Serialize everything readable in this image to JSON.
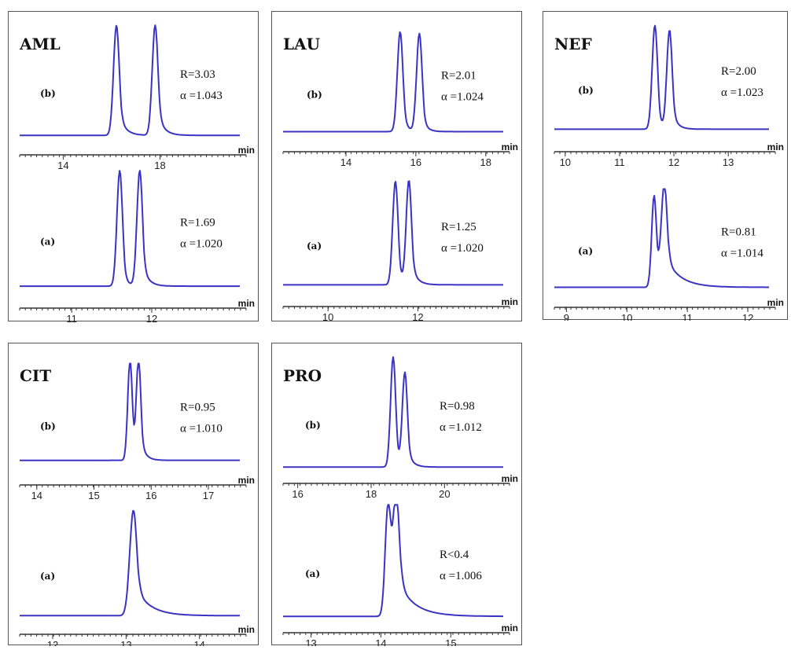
{
  "chart_data": [
    {
      "type": "line",
      "title": "AML",
      "traces": [
        {
          "label": "(b)",
          "R": "R=3.03",
          "alpha": "α =1.043",
          "axis": {
            "unit": "min",
            "ticks": [
              14,
              18
            ],
            "range": [
              12.2,
              21.3
            ]
          },
          "baseline": 0.02,
          "peaks": [
            {
              "t": 16.2,
              "h": 1.0,
              "w": 0.12,
              "tail": 0.25
            },
            {
              "t": 17.8,
              "h": 1.0,
              "w": 0.12,
              "tail": 0.25
            }
          ]
        },
        {
          "label": "(a)",
          "R": "R=1.69",
          "alpha": "α =1.020",
          "axis": {
            "unit": "min",
            "ticks": [
              11,
              12
            ],
            "range": [
              10.35,
              13.1
            ]
          },
          "baseline": 0.02,
          "peaks": [
            {
              "t": 11.6,
              "h": 1.0,
              "w": 0.035,
              "tail": 0.05
            },
            {
              "t": 11.85,
              "h": 1.0,
              "w": 0.035,
              "tail": 0.07
            }
          ]
        }
      ]
    },
    {
      "type": "line",
      "title": "LAU",
      "traces": [
        {
          "label": "(b)",
          "R": "R=2.01",
          "alpha": "α =1.024",
          "axis": {
            "unit": "min",
            "ticks": [
              14,
              16,
              18
            ],
            "range": [
              12.2,
              18.5
            ]
          },
          "baseline": 0.02,
          "peaks": [
            {
              "t": 15.55,
              "h": 1.0,
              "w": 0.08,
              "tail": 0.12
            },
            {
              "t": 16.1,
              "h": 0.98,
              "w": 0.08,
              "tail": 0.12
            }
          ]
        },
        {
          "label": "(a)",
          "R": "R=1.25",
          "alpha": "α =1.020",
          "axis": {
            "unit": "min",
            "ticks": [
              10,
              12
            ],
            "range": [
              9.0,
              13.9
            ]
          },
          "baseline": 0.02,
          "peaks": [
            {
              "t": 11.5,
              "h": 1.0,
              "w": 0.06,
              "tail": 0.09
            },
            {
              "t": 11.8,
              "h": 1.0,
              "w": 0.06,
              "tail": 0.12
            }
          ]
        }
      ]
    },
    {
      "type": "line",
      "title": "NEF",
      "traces": [
        {
          "label": "(b)",
          "R": "R=2.00",
          "alpha": "α =1.023",
          "axis": {
            "unit": "min",
            "ticks": [
              10,
              11,
              12,
              13
            ],
            "range": [
              9.8,
              13.75
            ]
          },
          "baseline": 0.02,
          "peaks": [
            {
              "t": 11.65,
              "h": 1.0,
              "w": 0.05,
              "tail": 0.07
            },
            {
              "t": 11.92,
              "h": 0.95,
              "w": 0.05,
              "tail": 0.09
            }
          ]
        },
        {
          "label": "(a)",
          "R": "R=0.81",
          "alpha": "α =1.014",
          "axis": {
            "unit": "min",
            "ticks": [
              9,
              10,
              11,
              12
            ],
            "range": [
              8.8,
              12.35
            ]
          },
          "baseline": 0.02,
          "peaks": [
            {
              "t": 10.45,
              "h": 0.93,
              "w": 0.04,
              "tail": 0.1
            },
            {
              "t": 10.62,
              "h": 1.0,
              "w": 0.05,
              "tail": 0.25
            }
          ]
        }
      ]
    },
    {
      "type": "line",
      "title": "CIT",
      "traces": [
        {
          "label": "(b)",
          "R": "R=0.95",
          "alpha": "α =1.010",
          "axis": {
            "unit": "min",
            "ticks": [
              14,
              15,
              16,
              17
            ],
            "range": [
              13.7,
              17.55
            ]
          },
          "baseline": 0.05,
          "peaks": [
            {
              "t": 15.63,
              "h": 1.0,
              "w": 0.04,
              "tail": 0.06
            },
            {
              "t": 15.78,
              "h": 1.0,
              "w": 0.04,
              "tail": 0.08
            }
          ]
        },
        {
          "label": "(a)",
          "R": "",
          "alpha": "",
          "axis": {
            "unit": "min",
            "ticks": [
              12,
              13,
              14
            ],
            "range": [
              11.55,
              14.55
            ]
          },
          "baseline": 0.02,
          "peaks": [
            {
              "t": 13.1,
              "h": 1.0,
              "w": 0.05,
              "tail": 0.2
            }
          ]
        }
      ]
    },
    {
      "type": "line",
      "title": "PRO",
      "traces": [
        {
          "label": "(b)",
          "R": "R=0.98",
          "alpha": "α =1.012",
          "axis": {
            "unit": "min",
            "ticks": [
              16,
              18,
              20
            ],
            "range": [
              15.6,
              21.6
            ]
          },
          "baseline": 0.02,
          "peaks": [
            {
              "t": 18.6,
              "h": 1.0,
              "w": 0.07,
              "tail": 0.1
            },
            {
              "t": 18.92,
              "h": 0.85,
              "w": 0.07,
              "tail": 0.13
            }
          ]
        },
        {
          "label": "(a)",
          "R": "R<0.4",
          "alpha": "α =1.006",
          "axis": {
            "unit": "min",
            "ticks": [
              13,
              14,
              15
            ],
            "range": [
              12.6,
              15.75
            ]
          },
          "baseline": 0.02,
          "peaks": [
            {
              "t": 14.1,
              "h": 0.96,
              "w": 0.04,
              "tail": 0.1
            },
            {
              "t": 14.22,
              "h": 1.0,
              "w": 0.05,
              "tail": 0.25
            }
          ]
        }
      ]
    }
  ]
}
